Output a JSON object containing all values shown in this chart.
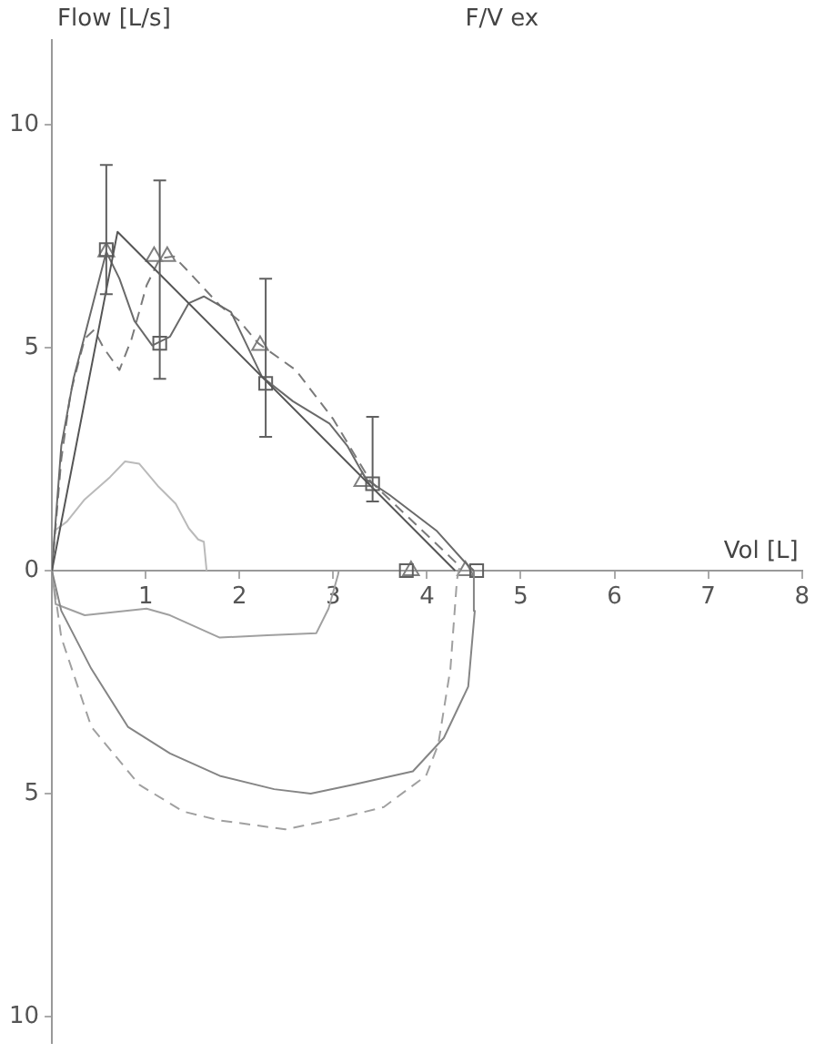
{
  "chart_data": {
    "type": "line",
    "title": "F/V ex",
    "xlabel": "Vol [L]",
    "ylabel": "Flow [L/s]",
    "xlim": [
      0,
      8
    ],
    "xticks": [
      1,
      2,
      3,
      4,
      5,
      6,
      7,
      8
    ],
    "ylim": [
      -10.6,
      11.9
    ],
    "yticks": [
      {
        "value": -10,
        "label": "10"
      },
      {
        "value": -5,
        "label": "5"
      },
      0,
      5,
      10
    ],
    "grid": false,
    "legend": false,
    "series": [
      {
        "color": "#555555",
        "line_style": "solid",
        "marker": "none",
        "x": [
          0,
          0.7,
          4.3
        ],
        "values": [
          0,
          7.6,
          0
        ]
      },
      {
        "color": "#6a6a6a",
        "line_style": "solid",
        "marker": "none",
        "x": [
          0,
          0.1,
          0.23,
          0.39,
          0.58,
          0.72,
          0.88,
          1.07,
          1.26,
          1.46,
          1.62,
          1.91,
          2.24,
          2.57,
          2.96,
          3.15,
          3.35,
          3.6,
          4.1,
          4.4,
          4.5
        ],
        "values": [
          0,
          2.8,
          4.3,
          5.6,
          7.15,
          6.55,
          5.6,
          5.05,
          5.25,
          6.0,
          6.15,
          5.8,
          4.35,
          3.8,
          3.3,
          2.8,
          2.05,
          1.7,
          0.9,
          0.2,
          0
        ]
      },
      {
        "color": "#858585",
        "line_style": "solid",
        "marker": "none",
        "x": [
          0,
          0.1,
          0.42,
          0.81,
          1.26,
          1.79,
          2.37,
          2.76,
          3.21,
          3.85,
          4.18,
          4.44,
          4.51,
          4.5
        ],
        "values": [
          0,
          -0.9,
          -2.2,
          -3.5,
          -4.1,
          -4.6,
          -4.9,
          -5.0,
          -4.8,
          -4.5,
          -3.75,
          -2.6,
          -0.9,
          0
        ]
      },
      {
        "color": "#7a7a7a",
        "line_style": "dashed",
        "marker": "none",
        "x": [
          0,
          0.1,
          0.2,
          0.35,
          0.45,
          0.55,
          0.72,
          0.85,
          1.01,
          1.15,
          1.3,
          1.46,
          1.79,
          2.0,
          2.2,
          2.6,
          3.0,
          3.4,
          3.8,
          4.2,
          4.35
        ],
        "values": [
          0,
          2.5,
          4.0,
          5.2,
          5.4,
          5.0,
          4.5,
          5.2,
          6.4,
          7.0,
          7.05,
          6.7,
          5.95,
          5.6,
          5.1,
          4.5,
          3.4,
          2.0,
          1.2,
          0.4,
          0.1
        ]
      },
      {
        "color": "#a0a0a0",
        "line_style": "dashed",
        "marker": "none",
        "x": [
          0,
          0.1,
          0.42,
          0.93,
          1.4,
          1.79,
          2.49,
          3.07,
          3.54,
          3.99,
          4.12,
          4.25,
          4.32,
          4.35
        ],
        "values": [
          0,
          -1.5,
          -3.5,
          -4.8,
          -5.4,
          -5.6,
          -5.8,
          -5.55,
          -5.3,
          -4.6,
          -3.9,
          -2.2,
          -0.2,
          0.1
        ]
      },
      {
        "color": "#bababa",
        "line_style": "solid",
        "marker": "none",
        "x": [
          0,
          0.03,
          0.16,
          0.35,
          0.62,
          0.78,
          0.93,
          1.13,
          1.32,
          1.46,
          1.56,
          1.62,
          1.65
        ],
        "values": [
          0,
          0.9,
          1.1,
          1.6,
          2.1,
          2.45,
          2.4,
          1.9,
          1.5,
          0.95,
          0.7,
          0.65,
          0
        ]
      },
      {
        "color": "#a0a0a0",
        "line_style": "solid",
        "marker": "none",
        "x": [
          0,
          0.04,
          0.35,
          1.01,
          1.26,
          1.79,
          2.3,
          2.82,
          2.95,
          3.05,
          3.06
        ],
        "values": [
          0,
          -0.75,
          -1.0,
          -0.85,
          -1.0,
          -1.5,
          -1.45,
          -1.4,
          -0.85,
          -0.1,
          0
        ]
      },
      {
        "type": "scatter",
        "color": "#606060",
        "marker": "square",
        "x": [
          0.58,
          1.15,
          2.28,
          3.42,
          3.78,
          4.53
        ],
        "values": [
          7.2,
          5.1,
          4.2,
          1.95,
          0,
          0
        ],
        "errors": [
          [
            6.2,
            9.1
          ],
          [
            4.3,
            8.75
          ],
          [
            3.0,
            6.55
          ],
          [
            1.55,
            3.45
          ],
          null,
          null
        ]
      },
      {
        "type": "scatter",
        "color": "#808080",
        "marker": "triangle",
        "x": [
          0.58,
          1.09,
          1.23,
          2.22,
          3.31,
          3.83,
          4.41
        ],
        "values": [
          7.15,
          7.05,
          7.05,
          5.05,
          2.0,
          0,
          0
        ]
      }
    ]
  }
}
